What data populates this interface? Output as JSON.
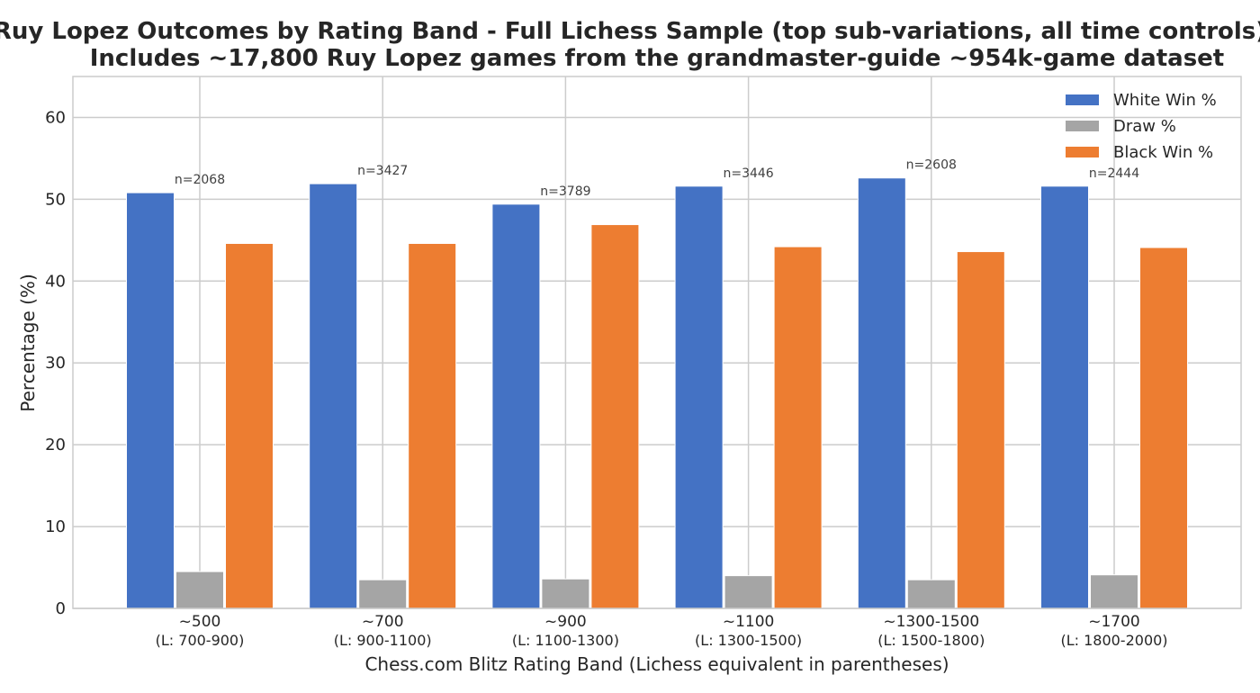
{
  "chart_data": {
    "type": "bar",
    "title": "Ruy Lopez Outcomes by Rating Band - Full Lichess Sample (top sub-variations, all time controls)",
    "subtitle": "Includes ~17,800 Ruy Lopez games from the grandmaster-guide ~954k-game dataset",
    "xlabel": "Chess.com Blitz Rating Band (Lichess equivalent in parentheses)",
    "ylabel": "Percentage (%)",
    "ylim": [
      0,
      65
    ],
    "yticks": [
      "0",
      "10",
      "20",
      "30",
      "40",
      "50",
      "60"
    ],
    "grid": true,
    "legend_position": "top-right",
    "categories": [
      {
        "label": "~500",
        "sub": "(L: 700-900)",
        "n": "n=2068"
      },
      {
        "label": "~700",
        "sub": "(L: 900-1100)",
        "n": "n=3427"
      },
      {
        "label": "~900",
        "sub": "(L: 1100-1300)",
        "n": "n=3789"
      },
      {
        "label": "~1100",
        "sub": "(L: 1300-1500)",
        "n": "n=3446"
      },
      {
        "label": "~1300-1500",
        "sub": "(L: 1500-1800)",
        "n": "n=2608"
      },
      {
        "label": "~1700",
        "sub": "(L: 1800-2000)",
        "n": "n=2444"
      }
    ],
    "series": [
      {
        "name": "White Win %",
        "color": "#4472c4",
        "values": [
          50.8,
          51.9,
          49.4,
          51.6,
          52.6,
          51.6
        ]
      },
      {
        "name": "Draw %",
        "color": "#a5a5a5",
        "values": [
          4.5,
          3.5,
          3.6,
          4.0,
          3.5,
          4.1
        ]
      },
      {
        "name": "Black Win %",
        "color": "#ed7d31",
        "values": [
          44.6,
          44.6,
          46.9,
          44.2,
          43.6,
          44.1
        ]
      }
    ]
  }
}
